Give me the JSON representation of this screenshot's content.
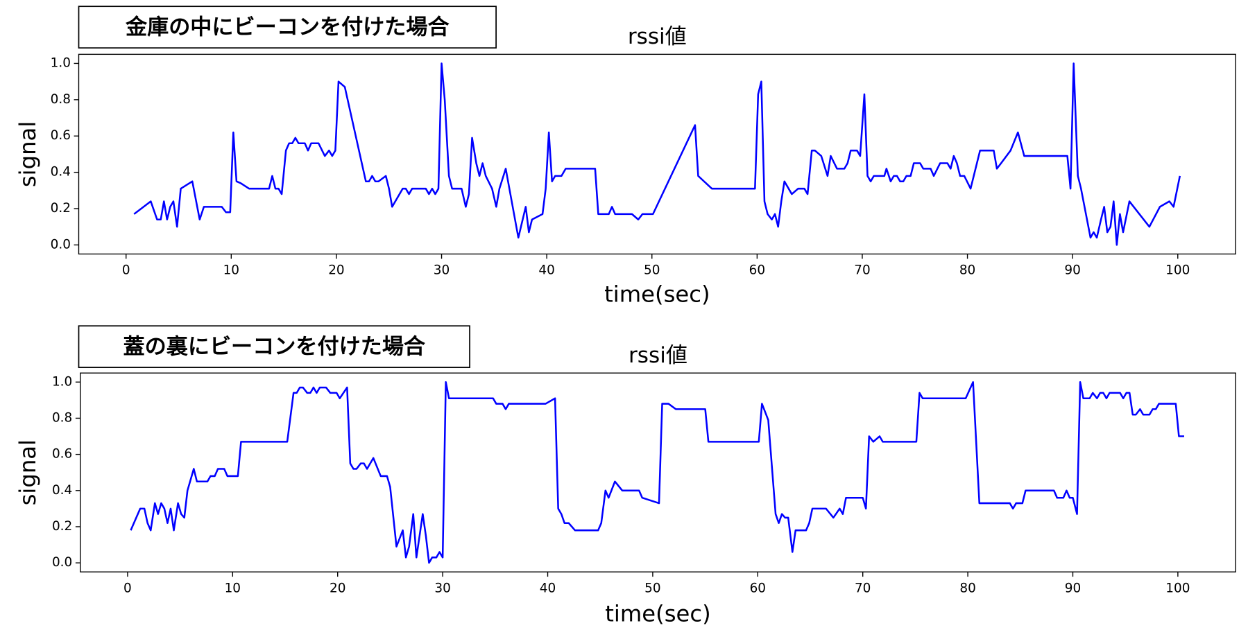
{
  "chart_data": [
    {
      "type": "line",
      "annotation": "金庫の中にビーコンを付けた場合",
      "title": "rssi値",
      "xlabel": "time(sec)",
      "ylabel": "signal",
      "color": "#0000ff",
      "xlim": [
        -4.5,
        105.5
      ],
      "ylim": [
        -0.05,
        1.05
      ],
      "xticks": [
        0,
        10,
        20,
        30,
        40,
        50,
        60,
        70,
        80,
        90,
        100
      ],
      "yticks": [
        {
          "value": 0,
          "label": "0.0"
        },
        0.2,
        0.4,
        0.6,
        0.8,
        {
          "value": 1,
          "label": "1.0"
        }
      ],
      "x": [
        0.76,
        2.35,
        2.95,
        3.3,
        3.6,
        3.9,
        4.2,
        4.5,
        4.85,
        5.2,
        6.3,
        7.0,
        7.4,
        9.1,
        9.5,
        9.9,
        10.2,
        10.5,
        10.9,
        11.7,
        13.6,
        13.9,
        14.2,
        14.5,
        14.8,
        15.2,
        15.5,
        15.8,
        16.1,
        16.4,
        17.0,
        17.3,
        17.6,
        18.3,
        18.9,
        19.3,
        19.6,
        19.9,
        20.2,
        20.8,
        22.8,
        23.1,
        23.4,
        23.7,
        24.0,
        24.7,
        25.0,
        25.3,
        26.3,
        26.6,
        26.9,
        27.2,
        28.5,
        28.8,
        29.1,
        29.4,
        29.7,
        30.0,
        30.3,
        30.7,
        31.0,
        31.9,
        32.3,
        32.6,
        32.9,
        33.3,
        33.6,
        33.9,
        34.2,
        34.8,
        35.2,
        35.5,
        36.1,
        37.3,
        38.0,
        38.3,
        38.6,
        39.6,
        39.9,
        40.2,
        40.5,
        40.8,
        41.4,
        41.8,
        44.6,
        44.9,
        45.9,
        46.2,
        46.5,
        48.1,
        48.7,
        49.1,
        50.1,
        54.1,
        54.4,
        55.7,
        59.8,
        60.1,
        60.4,
        60.7,
        61.0,
        61.4,
        61.7,
        62.0,
        62.3,
        62.6,
        63.3,
        63.9,
        64.5,
        64.8,
        65.2,
        65.5,
        66.1,
        66.7,
        67.0,
        67.6,
        68.3,
        68.6,
        68.9,
        69.5,
        69.8,
        70.2,
        70.5,
        70.8,
        71.1,
        72.1,
        72.3,
        72.7,
        73.0,
        73.3,
        73.6,
        73.9,
        74.2,
        74.6,
        74.9,
        75.5,
        75.8,
        76.5,
        76.8,
        77.4,
        78.1,
        78.4,
        78.7,
        79.0,
        79.3,
        79.7,
        80.3,
        81.2,
        82.5,
        82.8,
        83.2,
        84.1,
        84.8,
        85.4,
        89.5,
        89.8,
        90.1,
        90.5,
        90.8,
        91.7,
        92.0,
        92.3,
        92.7,
        93.0,
        93.3,
        93.6,
        93.9,
        94.2,
        94.5,
        94.8,
        95.4,
        97.3,
        98.3,
        99.2,
        99.6,
        100.2
      ],
      "values": [
        0.17,
        0.24,
        0.14,
        0.14,
        0.24,
        0.14,
        0.21,
        0.24,
        0.1,
        0.31,
        0.35,
        0.14,
        0.21,
        0.21,
        0.18,
        0.18,
        0.62,
        0.35,
        0.34,
        0.31,
        0.31,
        0.38,
        0.31,
        0.31,
        0.28,
        0.52,
        0.56,
        0.56,
        0.59,
        0.56,
        0.56,
        0.52,
        0.56,
        0.56,
        0.49,
        0.52,
        0.49,
        0.52,
        0.9,
        0.87,
        0.35,
        0.35,
        0.38,
        0.35,
        0.35,
        0.38,
        0.31,
        0.21,
        0.31,
        0.31,
        0.28,
        0.31,
        0.31,
        0.28,
        0.31,
        0.28,
        0.31,
        1.0,
        0.8,
        0.38,
        0.31,
        0.31,
        0.21,
        0.28,
        0.59,
        0.45,
        0.38,
        0.45,
        0.38,
        0.31,
        0.21,
        0.31,
        0.42,
        0.04,
        0.21,
        0.07,
        0.14,
        0.17,
        0.31,
        0.62,
        0.35,
        0.38,
        0.38,
        0.42,
        0.42,
        0.17,
        0.17,
        0.21,
        0.17,
        0.17,
        0.14,
        0.17,
        0.17,
        0.66,
        0.38,
        0.31,
        0.31,
        0.83,
        0.9,
        0.24,
        0.17,
        0.14,
        0.17,
        0.1,
        0.24,
        0.35,
        0.28,
        0.31,
        0.31,
        0.28,
        0.52,
        0.52,
        0.49,
        0.38,
        0.49,
        0.42,
        0.42,
        0.45,
        0.52,
        0.52,
        0.49,
        0.83,
        0.38,
        0.35,
        0.38,
        0.38,
        0.42,
        0.35,
        0.38,
        0.38,
        0.35,
        0.35,
        0.38,
        0.38,
        0.45,
        0.45,
        0.42,
        0.42,
        0.38,
        0.45,
        0.45,
        0.42,
        0.49,
        0.45,
        0.38,
        0.38,
        0.31,
        0.52,
        0.52,
        0.42,
        0.45,
        0.52,
        0.62,
        0.49,
        0.49,
        0.31,
        1.0,
        0.38,
        0.31,
        0.04,
        0.07,
        0.04,
        0.14,
        0.21,
        0.07,
        0.1,
        0.24,
        0.0,
        0.17,
        0.07,
        0.24,
        0.1,
        0.21,
        0.24,
        0.21,
        0.38
      ]
    },
    {
      "type": "line",
      "annotation": "蓋の裏にビーコンを付けた場合",
      "title": "rssi値",
      "xlabel": "time(sec)",
      "ylabel": "signal",
      "color": "#0000ff",
      "xlim": [
        -4.5,
        105.5
      ],
      "ylim": [
        -0.05,
        1.05
      ],
      "xticks": [
        0,
        10,
        20,
        30,
        40,
        50,
        60,
        70,
        80,
        90,
        100
      ],
      "yticks": [
        {
          "value": 0,
          "label": "0.0"
        },
        0.2,
        0.4,
        0.6,
        0.8,
        {
          "value": 1,
          "label": "1.0"
        }
      ],
      "x": [
        0.3,
        1.2,
        1.6,
        1.9,
        2.2,
        2.6,
        2.9,
        3.2,
        3.5,
        3.8,
        4.1,
        4.4,
        4.8,
        5.1,
        5.4,
        5.7,
        6.3,
        6.6,
        7.3,
        7.6,
        7.9,
        8.3,
        8.6,
        9.2,
        9.5,
        10.5,
        10.8,
        15.2,
        15.8,
        16.1,
        16.4,
        16.7,
        17.1,
        17.4,
        17.7,
        18.0,
        18.3,
        18.9,
        19.3,
        19.9,
        20.2,
        20.9,
        21.2,
        21.5,
        21.8,
        22.2,
        22.5,
        22.8,
        23.4,
        24.1,
        24.7,
        25.0,
        25.6,
        26.2,
        26.5,
        26.8,
        27.2,
        27.5,
        28.1,
        28.4,
        28.7,
        29.0,
        29.4,
        29.7,
        30.0,
        30.3,
        30.6,
        34.8,
        35.1,
        35.7,
        36.0,
        36.3,
        39.8,
        40.7,
        41.0,
        41.3,
        41.6,
        42.0,
        42.6,
        44.8,
        45.1,
        45.5,
        45.8,
        46.4,
        47.1,
        48.7,
        49.0,
        50.6,
        50.9,
        51.5,
        52.2,
        55.0,
        55.3,
        60.1,
        60.4,
        61.0,
        61.7,
        62.0,
        62.3,
        62.6,
        62.9,
        63.3,
        63.6,
        64.6,
        64.9,
        65.2,
        66.5,
        67.2,
        67.8,
        68.1,
        68.4,
        70.0,
        70.3,
        70.6,
        71.0,
        71.6,
        71.9,
        75.1,
        75.4,
        75.7,
        79.8,
        80.5,
        81.1,
        84.0,
        84.3,
        84.6,
        85.2,
        85.5,
        88.2,
        88.5,
        89.1,
        89.4,
        89.7,
        90.0,
        90.4,
        90.7,
        91.0,
        91.6,
        91.9,
        92.3,
        92.6,
        92.9,
        93.2,
        93.5,
        94.5,
        94.8,
        95.1,
        95.4,
        95.7,
        96.0,
        96.4,
        96.7,
        97.3,
        97.6,
        97.9,
        98.2,
        99.8,
        100.1,
        100.6
      ],
      "values": [
        0.18,
        0.3,
        0.3,
        0.22,
        0.18,
        0.33,
        0.27,
        0.33,
        0.3,
        0.22,
        0.3,
        0.18,
        0.33,
        0.27,
        0.25,
        0.4,
        0.52,
        0.45,
        0.45,
        0.45,
        0.48,
        0.48,
        0.52,
        0.52,
        0.48,
        0.48,
        0.67,
        0.67,
        0.94,
        0.94,
        0.97,
        0.97,
        0.94,
        0.94,
        0.97,
        0.94,
        0.97,
        0.97,
        0.94,
        0.94,
        0.91,
        0.97,
        0.55,
        0.52,
        0.52,
        0.55,
        0.55,
        0.52,
        0.58,
        0.48,
        0.48,
        0.42,
        0.09,
        0.18,
        0.03,
        0.09,
        0.27,
        0.03,
        0.27,
        0.15,
        0.0,
        0.03,
        0.03,
        0.06,
        0.03,
        1.0,
        0.91,
        0.91,
        0.88,
        0.88,
        0.85,
        0.88,
        0.88,
        0.91,
        0.3,
        0.27,
        0.22,
        0.22,
        0.18,
        0.18,
        0.22,
        0.4,
        0.36,
        0.45,
        0.4,
        0.4,
        0.36,
        0.33,
        0.88,
        0.88,
        0.85,
        0.85,
        0.67,
        0.67,
        0.88,
        0.79,
        0.27,
        0.22,
        0.27,
        0.25,
        0.25,
        0.06,
        0.18,
        0.18,
        0.22,
        0.3,
        0.3,
        0.25,
        0.3,
        0.27,
        0.36,
        0.36,
        0.3,
        0.7,
        0.67,
        0.7,
        0.67,
        0.67,
        0.94,
        0.91,
        0.91,
        1.0,
        0.33,
        0.33,
        0.3,
        0.33,
        0.33,
        0.4,
        0.4,
        0.36,
        0.36,
        0.4,
        0.36,
        0.36,
        0.27,
        1.0,
        0.91,
        0.91,
        0.94,
        0.91,
        0.94,
        0.94,
        0.91,
        0.94,
        0.94,
        0.91,
        0.94,
        0.94,
        0.82,
        0.82,
        0.85,
        0.82,
        0.82,
        0.85,
        0.85,
        0.88,
        0.88,
        0.7,
        0.7
      ]
    }
  ]
}
